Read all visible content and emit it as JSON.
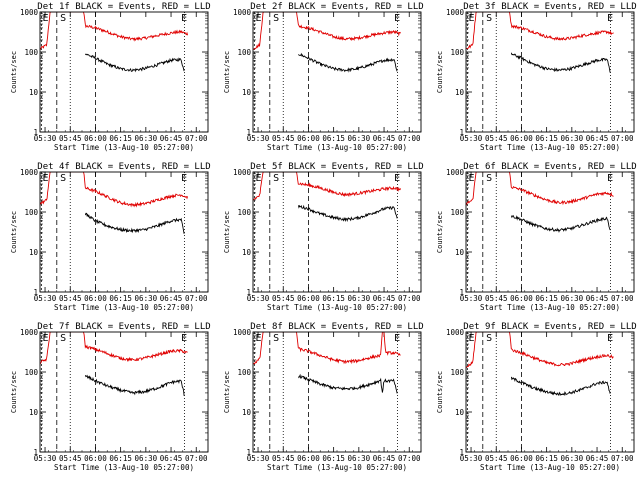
{
  "figure": {
    "background": "#ffffff"
  },
  "chart_data": {
    "type": "line",
    "colors": {
      "events": "#000000",
      "lld": "#e00000"
    },
    "panel_titles": [
      "Det 1f BLACK = Events, RED = LLD",
      "Det 2f BLACK = Events, RED = LLD",
      "Det 3f BLACK = Events, RED = LLD",
      "Det 4f BLACK = Events, RED = LLD",
      "Det 5f BLACK = Events, RED = LLD",
      "Det 6f BLACK = Events, RED = LLD",
      "Det 7f BLACK = Events, RED = LLD",
      "Det 8f BLACK = Events, RED = LLD",
      "Det 9f BLACK = Events, RED = LLD"
    ],
    "xlabel": "Start Time (13-Aug-10 05:27:00)",
    "ylabel": "Counts/sec",
    "x_range_minutes": [
      0,
      100
    ],
    "x_ticks": [
      {
        "label": "05:30",
        "min": 3
      },
      {
        "label": "05:45",
        "min": 18
      },
      {
        "label": "06:00",
        "min": 33
      },
      {
        "label": "06:15",
        "min": 48
      },
      {
        "label": "06:30",
        "min": 63
      },
      {
        "label": "06:45",
        "min": 78
      },
      {
        "label": "07:00",
        "min": 93
      }
    ],
    "y_scale": "log",
    "ylim": [
      1,
      1000
    ],
    "y_ticks": [
      "1",
      "10",
      "100",
      "1000"
    ],
    "markers": [
      "E",
      "S",
      "E"
    ],
    "lld_series": [
      [
        [
          0,
          120
        ],
        [
          4,
          150
        ],
        [
          6,
          1000
        ],
        [
          26,
          1000
        ],
        [
          27,
          450
        ],
        [
          33,
          400
        ],
        [
          40,
          320
        ],
        [
          48,
          240
        ],
        [
          55,
          210
        ],
        [
          62,
          220
        ],
        [
          70,
          260
        ],
        [
          78,
          300
        ],
        [
          84,
          320
        ],
        [
          88,
          280
        ]
      ],
      [
        [
          0,
          120
        ],
        [
          4,
          150
        ],
        [
          6,
          1000
        ],
        [
          26,
          1000
        ],
        [
          27,
          450
        ],
        [
          33,
          400
        ],
        [
          40,
          320
        ],
        [
          48,
          240
        ],
        [
          55,
          210
        ],
        [
          62,
          220
        ],
        [
          70,
          260
        ],
        [
          78,
          300
        ],
        [
          84,
          320
        ],
        [
          88,
          280
        ]
      ],
      [
        [
          0,
          120
        ],
        [
          4,
          150
        ],
        [
          6,
          1000
        ],
        [
          26,
          1000
        ],
        [
          27,
          450
        ],
        [
          33,
          400
        ],
        [
          40,
          320
        ],
        [
          48,
          240
        ],
        [
          55,
          210
        ],
        [
          62,
          220
        ],
        [
          70,
          260
        ],
        [
          78,
          300
        ],
        [
          84,
          320
        ],
        [
          88,
          280
        ]
      ],
      [
        [
          0,
          160
        ],
        [
          4,
          200
        ],
        [
          6,
          1000
        ],
        [
          26,
          1000
        ],
        [
          27,
          400
        ],
        [
          33,
          330
        ],
        [
          40,
          240
        ],
        [
          48,
          170
        ],
        [
          55,
          150
        ],
        [
          62,
          160
        ],
        [
          70,
          200
        ],
        [
          78,
          250
        ],
        [
          84,
          270
        ],
        [
          88,
          230
        ]
      ],
      [
        [
          0,
          200
        ],
        [
          4,
          260
        ],
        [
          6,
          1000
        ],
        [
          26,
          1000
        ],
        [
          27,
          520
        ],
        [
          33,
          470
        ],
        [
          40,
          400
        ],
        [
          48,
          310
        ],
        [
          55,
          270
        ],
        [
          62,
          290
        ],
        [
          70,
          330
        ],
        [
          78,
          380
        ],
        [
          84,
          400
        ],
        [
          88,
          360
        ]
      ],
      [
        [
          0,
          160
        ],
        [
          4,
          200
        ],
        [
          6,
          1000
        ],
        [
          26,
          1000
        ],
        [
          27,
          420
        ],
        [
          33,
          360
        ],
        [
          40,
          270
        ],
        [
          48,
          200
        ],
        [
          55,
          170
        ],
        [
          62,
          180
        ],
        [
          70,
          220
        ],
        [
          78,
          280
        ],
        [
          84,
          300
        ],
        [
          88,
          260
        ]
      ],
      [
        [
          0,
          170
        ],
        [
          4,
          210
        ],
        [
          6,
          1000
        ],
        [
          26,
          1000
        ],
        [
          27,
          430
        ],
        [
          33,
          370
        ],
        [
          40,
          290
        ],
        [
          48,
          220
        ],
        [
          55,
          200
        ],
        [
          62,
          220
        ],
        [
          70,
          270
        ],
        [
          78,
          330
        ],
        [
          84,
          340
        ],
        [
          88,
          300
        ]
      ],
      [
        [
          0,
          160
        ],
        [
          4,
          210
        ],
        [
          6,
          1000
        ],
        [
          26,
          1000
        ],
        [
          27,
          380
        ],
        [
          33,
          330
        ],
        [
          40,
          260
        ],
        [
          48,
          200
        ],
        [
          55,
          180
        ],
        [
          62,
          190
        ],
        [
          70,
          230
        ],
        [
          76,
          260
        ],
        [
          77,
          1000
        ],
        [
          78,
          1000
        ],
        [
          79,
          300
        ],
        [
          84,
          300
        ],
        [
          88,
          260
        ]
      ],
      [
        [
          0,
          130
        ],
        [
          4,
          170
        ],
        [
          6,
          1000
        ],
        [
          26,
          1000
        ],
        [
          27,
          360
        ],
        [
          33,
          300
        ],
        [
          40,
          230
        ],
        [
          48,
          170
        ],
        [
          55,
          150
        ],
        [
          62,
          160
        ],
        [
          70,
          200
        ],
        [
          78,
          240
        ],
        [
          84,
          260
        ],
        [
          88,
          230
        ]
      ]
    ],
    "events_series": [
      [
        [
          27,
          90
        ],
        [
          33,
          70
        ],
        [
          40,
          50
        ],
        [
          48,
          38
        ],
        [
          55,
          35
        ],
        [
          62,
          38
        ],
        [
          70,
          48
        ],
        [
          78,
          62
        ],
        [
          84,
          65
        ],
        [
          86,
          30
        ]
      ],
      [
        [
          27,
          90
        ],
        [
          33,
          70
        ],
        [
          40,
          50
        ],
        [
          48,
          38
        ],
        [
          55,
          35
        ],
        [
          62,
          38
        ],
        [
          70,
          48
        ],
        [
          78,
          62
        ],
        [
          84,
          65
        ],
        [
          86,
          30
        ]
      ],
      [
        [
          27,
          90
        ],
        [
          33,
          70
        ],
        [
          40,
          50
        ],
        [
          48,
          38
        ],
        [
          55,
          35
        ],
        [
          62,
          38
        ],
        [
          70,
          48
        ],
        [
          78,
          62
        ],
        [
          84,
          65
        ],
        [
          86,
          30
        ]
      ],
      [
        [
          27,
          90
        ],
        [
          33,
          60
        ],
        [
          40,
          45
        ],
        [
          48,
          36
        ],
        [
          55,
          34
        ],
        [
          62,
          36
        ],
        [
          70,
          45
        ],
        [
          78,
          60
        ],
        [
          84,
          65
        ],
        [
          86,
          25
        ]
      ],
      [
        [
          27,
          140
        ],
        [
          33,
          120
        ],
        [
          40,
          90
        ],
        [
          48,
          72
        ],
        [
          55,
          65
        ],
        [
          62,
          70
        ],
        [
          70,
          90
        ],
        [
          78,
          120
        ],
        [
          84,
          130
        ],
        [
          86,
          60
        ]
      ],
      [
        [
          27,
          80
        ],
        [
          33,
          65
        ],
        [
          40,
          48
        ],
        [
          48,
          38
        ],
        [
          55,
          35
        ],
        [
          62,
          38
        ],
        [
          70,
          48
        ],
        [
          78,
          62
        ],
        [
          84,
          70
        ],
        [
          86,
          30
        ]
      ],
      [
        [
          27,
          80
        ],
        [
          33,
          60
        ],
        [
          40,
          45
        ],
        [
          48,
          35
        ],
        [
          55,
          30
        ],
        [
          62,
          32
        ],
        [
          70,
          40
        ],
        [
          78,
          55
        ],
        [
          84,
          60
        ],
        [
          86,
          25
        ]
      ],
      [
        [
          27,
          80
        ],
        [
          33,
          65
        ],
        [
          40,
          50
        ],
        [
          48,
          40
        ],
        [
          55,
          38
        ],
        [
          62,
          40
        ],
        [
          70,
          50
        ],
        [
          76,
          62
        ],
        [
          77,
          30
        ],
        [
          78,
          60
        ],
        [
          84,
          60
        ],
        [
          86,
          25
        ]
      ],
      [
        [
          27,
          70
        ],
        [
          33,
          55
        ],
        [
          40,
          40
        ],
        [
          48,
          32
        ],
        [
          55,
          28
        ],
        [
          62,
          30
        ],
        [
          70,
          38
        ],
        [
          78,
          52
        ],
        [
          84,
          56
        ],
        [
          86,
          25
        ]
      ]
    ]
  }
}
